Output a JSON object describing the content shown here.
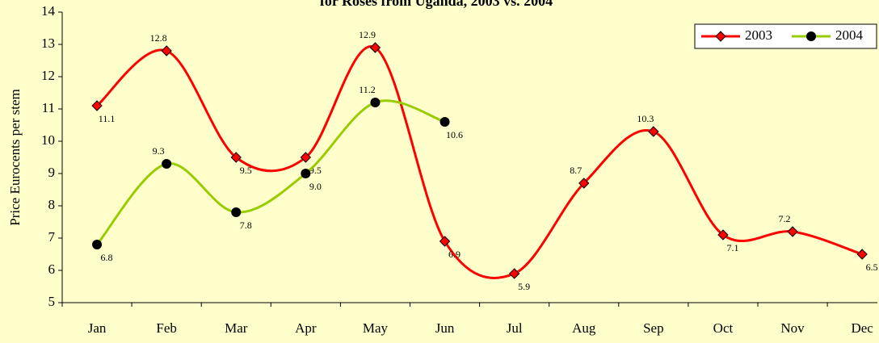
{
  "chart_data": {
    "type": "line",
    "title": "for Roses from Uganda, 2003 vs. 2004",
    "y_label": "Price Eurocents per stem",
    "categories": [
      "Jan",
      "Feb",
      "Mar",
      "Apr",
      "May",
      "Jun",
      "Jul",
      "Aug",
      "Sep",
      "Oct",
      "Nov",
      "Dec"
    ],
    "series": [
      {
        "name": "2003",
        "color": "#ff0000",
        "marker": "diamond",
        "values": [
          11.1,
          12.8,
          9.5,
          9.5,
          12.9,
          6.9,
          5.9,
          8.7,
          10.3,
          7.1,
          7.2,
          6.5
        ],
        "value_labels": [
          "11.1",
          "12.8",
          "9.5",
          "9.5",
          "12.9",
          "6.9",
          "5.9",
          "8.7",
          "10.3",
          "7.1",
          "7.2",
          "6.5"
        ]
      },
      {
        "name": "2004",
        "color": "#99cc00",
        "marker": "circle",
        "values": [
          6.8,
          9.3,
          7.8,
          9.0,
          11.2,
          10.6,
          null,
          null,
          null,
          null,
          null,
          null
        ],
        "value_labels": [
          "6.8",
          "9.3",
          "7.8",
          "9.0",
          "11.2",
          "10.6",
          null,
          null,
          null,
          null,
          null,
          null
        ]
      }
    ],
    "ylim": [
      5,
      14
    ],
    "yticks": [
      5,
      6,
      7,
      8,
      9,
      10,
      11,
      12,
      13,
      14
    ],
    "legend": "top-right",
    "smooth": true
  }
}
